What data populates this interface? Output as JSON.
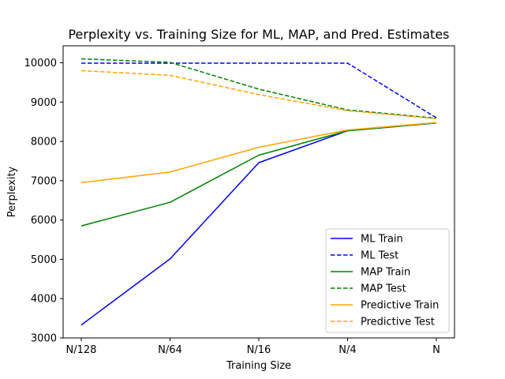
{
  "chart_data": {
    "type": "line",
    "title": "Perplexity vs. Training Size for ML, MAP, and Pred. Estimates",
    "xlabel": "Training Size",
    "ylabel": "Perplexity",
    "categories": [
      "N/128",
      "N/64",
      "N/16",
      "N/4",
      "N"
    ],
    "ylim": [
      3000,
      10400
    ],
    "yticks": [
      3000,
      4000,
      5000,
      6000,
      7000,
      8000,
      9000,
      10000
    ],
    "grid": false,
    "legend_position": "lower-right",
    "series": [
      {
        "name": "ML Train",
        "color": "#0000ff",
        "style": "solid",
        "values": [
          3330,
          5010,
          7460,
          8270,
          8470
        ]
      },
      {
        "name": "ML Test",
        "color": "#0000ff",
        "style": "dashed",
        "values": [
          9990,
          9990,
          9990,
          9990,
          8600
        ]
      },
      {
        "name": "MAP Train",
        "color": "#008000",
        "style": "solid",
        "values": [
          5850,
          6450,
          7650,
          8270,
          8470
        ]
      },
      {
        "name": "MAP Test",
        "color": "#008000",
        "style": "dashed",
        "values": [
          10100,
          10010,
          9330,
          8800,
          8590
        ]
      },
      {
        "name": "Predictive Train",
        "color": "#ffa500",
        "style": "solid",
        "values": [
          6950,
          7220,
          7850,
          8290,
          8480
        ]
      },
      {
        "name": "Predictive Test",
        "color": "#ffa500",
        "style": "dashed",
        "values": [
          9800,
          9680,
          9190,
          8780,
          8580
        ]
      }
    ]
  }
}
